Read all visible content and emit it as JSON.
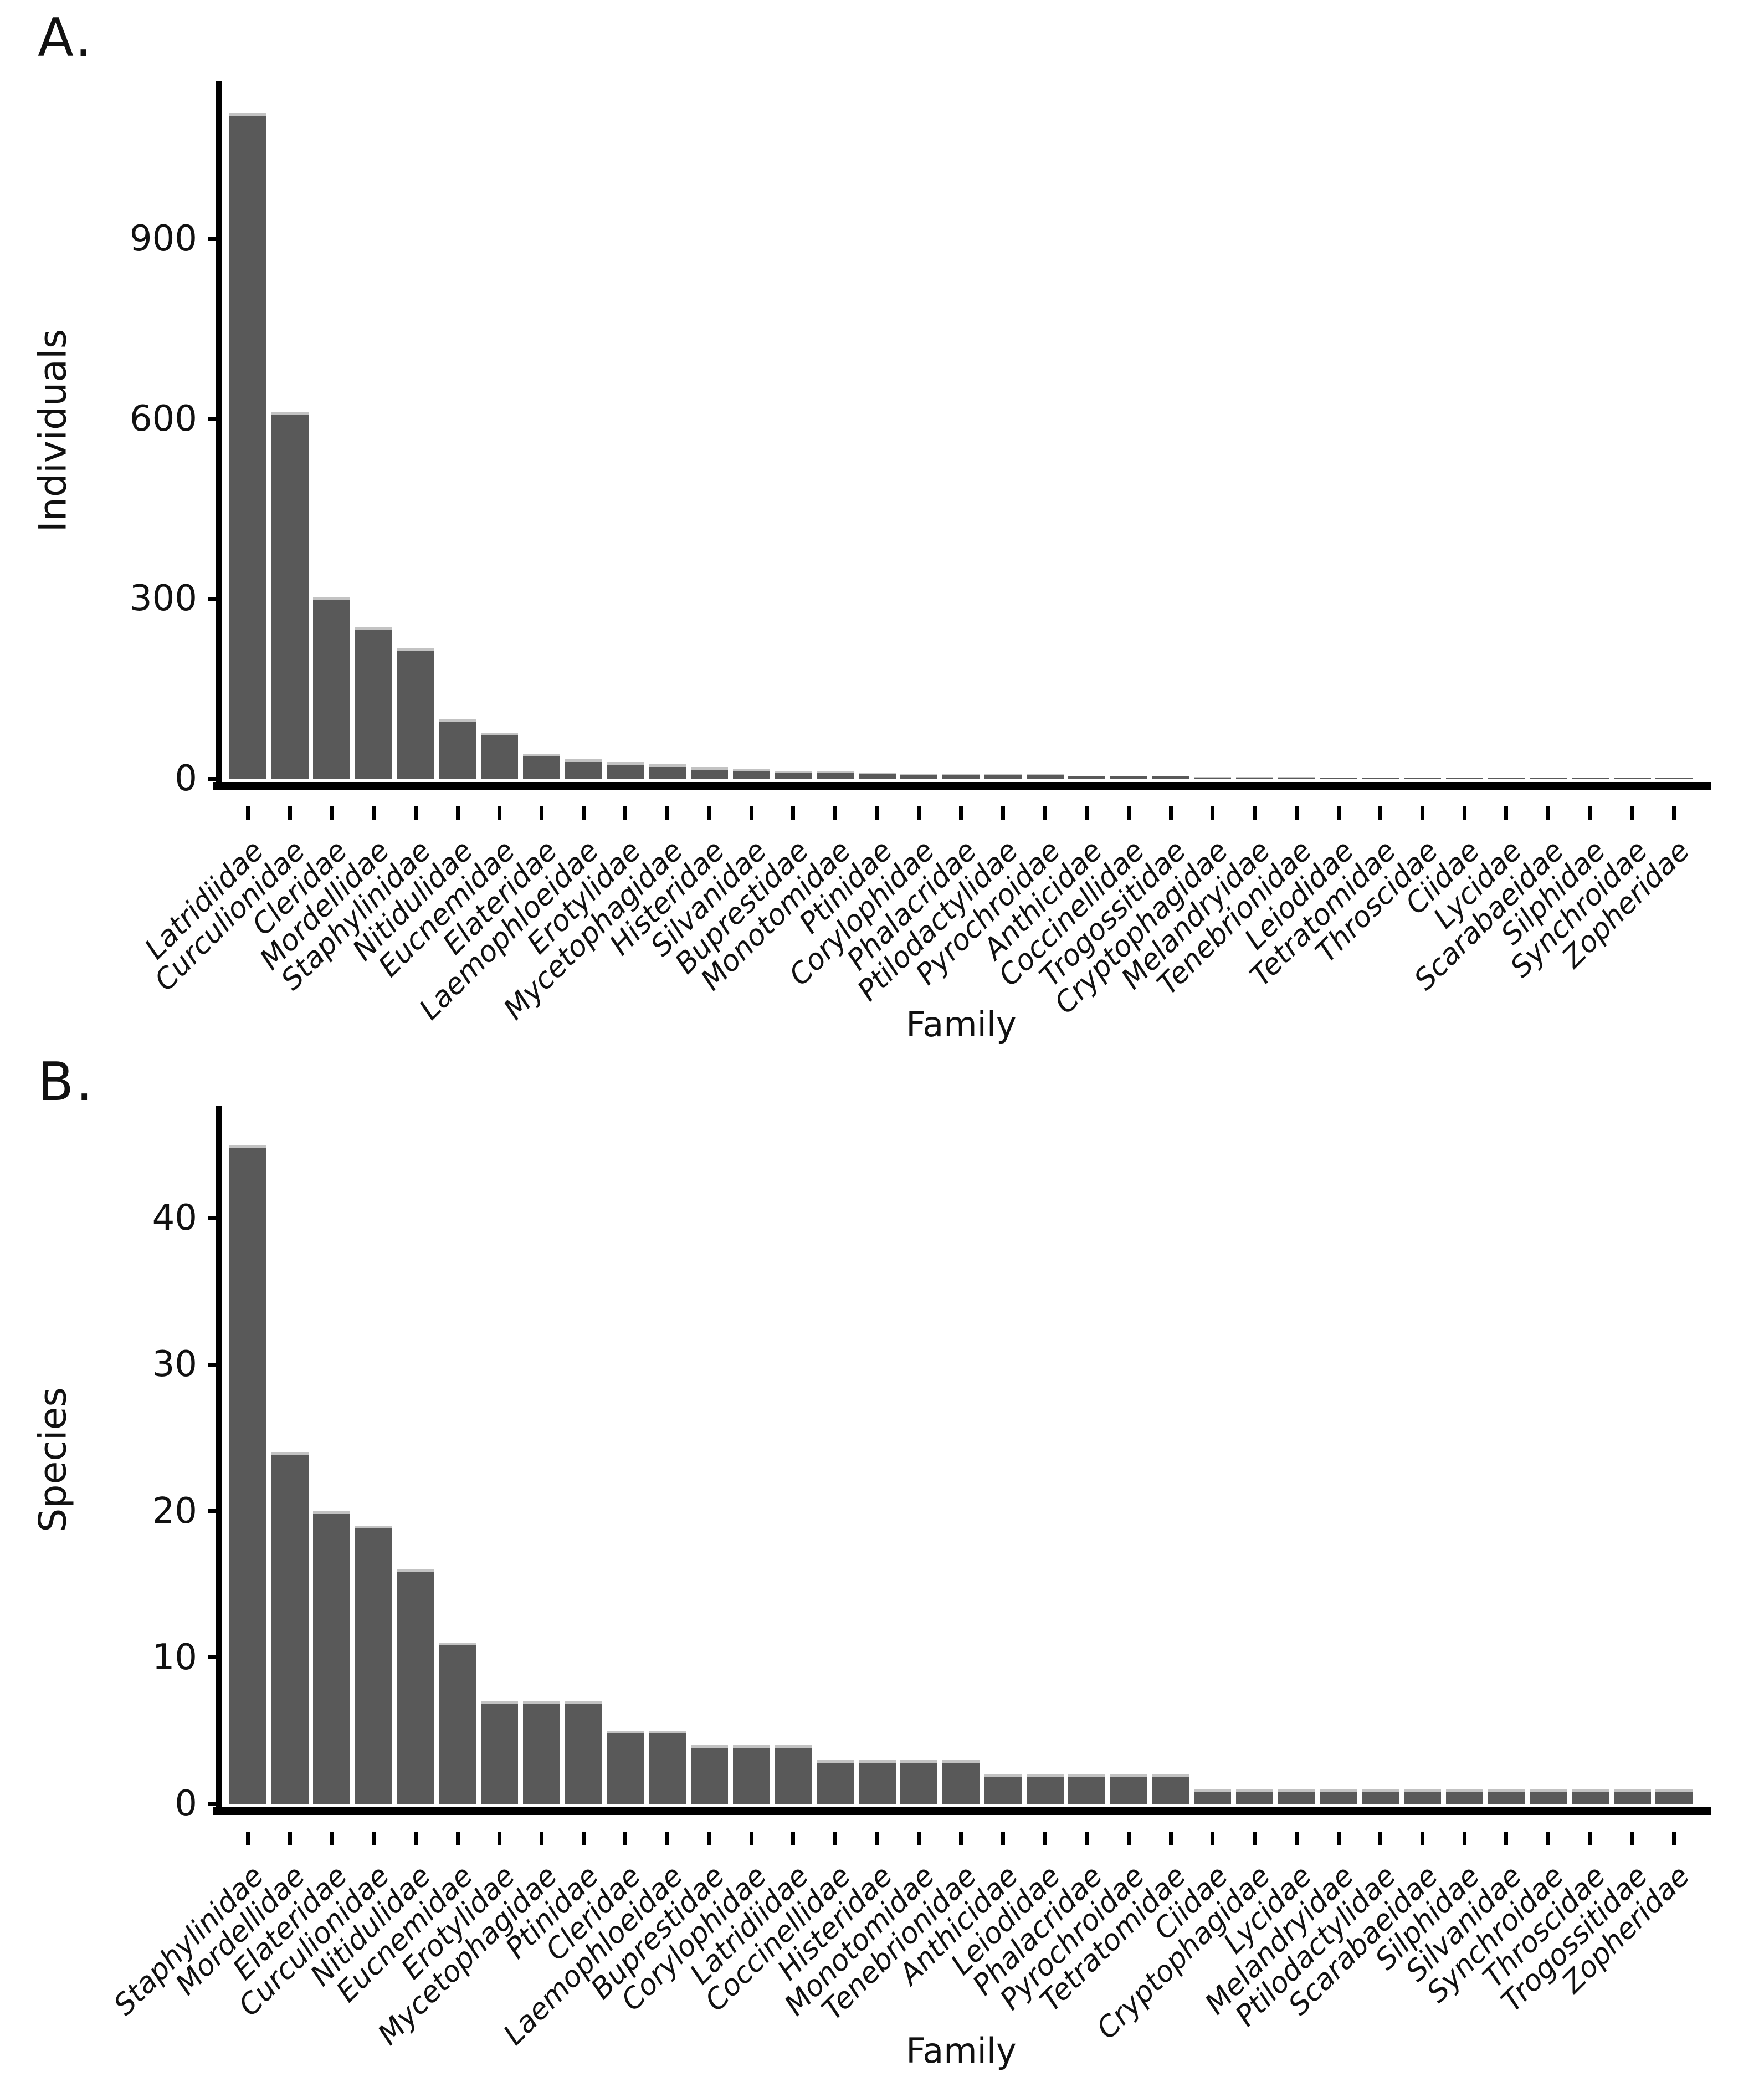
{
  "figure_title": "",
  "colors": {
    "bar": "#595959",
    "bar_top_edge": "#c3c3c3",
    "axis": "#000000",
    "text": "#111111",
    "background": "#ffffff"
  },
  "chart_data": [
    {
      "type": "bar",
      "panel_label": "A.",
      "ylabel": "Individuals",
      "xlabel": "Family",
      "yticks": [
        0,
        300,
        600,
        900
      ],
      "ylim": [
        0,
        1160
      ],
      "grid": false,
      "legend": "none",
      "categories": [
        "Latridiidae",
        "Curculionidae",
        "Cleridae",
        "Mordellidae",
        "Staphylinidae",
        "Nitidulidae",
        "Eucnemidae",
        "Elateridae",
        "Laemophloeidae",
        "Erotylidae",
        "Mycetophagidae",
        "Histeridae",
        "Silvanidae",
        "Buprestidae",
        "Monotomidae",
        "Ptinidae",
        "Corylophidae",
        "Phalacridae",
        "Ptilodactylidae",
        "Pyrochroidae",
        "Anthicidae",
        "Coccinellidae",
        "Trogossitidae",
        "Cryptophagidae",
        "Melandryidae",
        "Tenebrionidae",
        "Leiodidae",
        "Tetratomidae",
        "Throscidae",
        "Ciidae",
        "Lycidae",
        "Scarabaeidae",
        "Silphidae",
        "Synchroidae",
        "Zopheridae"
      ],
      "values": [
        1110,
        612,
        303,
        252,
        217,
        100,
        77,
        42,
        32,
        28,
        24,
        19,
        16,
        13,
        12,
        10,
        8,
        8,
        7,
        7,
        5,
        5,
        5,
        3,
        3,
        3,
        2,
        2,
        2,
        1,
        1,
        1,
        1,
        1,
        1
      ]
    },
    {
      "type": "bar",
      "panel_label": "B.",
      "ylabel": "Species",
      "xlabel": "Family",
      "yticks": [
        0,
        10,
        20,
        30,
        40
      ],
      "ylim": [
        0,
        47.5
      ],
      "grid": false,
      "legend": "none",
      "categories": [
        "Staphylinidae",
        "Mordellidae",
        "Elateridae",
        "Curculionidae",
        "Nitidulidae",
        "Eucnemidae",
        "Erotylidae",
        "Mycetophagidae",
        "Ptinidae",
        "Cleridae",
        "Laemophloeidae",
        "Buprestidae",
        "Corylophidae",
        "Latridiidae",
        "Coccinellidae",
        "Histeridae",
        "Monotomidae",
        "Tenebrionidae",
        "Anthicidae",
        "Leiodidae",
        "Phalacridae",
        "Pyrochroidae",
        "Tetratomidae",
        "Ciidae",
        "Cryptophagidae",
        "Lycidae",
        "Melandryidae",
        "Ptilodactylidae",
        "Scarabaeidae",
        "Silphidae",
        "Silvanidae",
        "Synchroidae",
        "Throscidae",
        "Trogossitidae",
        "Zopheridae"
      ],
      "values": [
        45,
        24,
        20,
        19,
        16,
        11,
        7,
        7,
        7,
        5,
        5,
        4,
        4,
        4,
        3,
        3,
        3,
        3,
        2,
        2,
        2,
        2,
        2,
        1,
        1,
        1,
        1,
        1,
        1,
        1,
        1,
        1,
        1,
        1,
        1
      ]
    }
  ]
}
